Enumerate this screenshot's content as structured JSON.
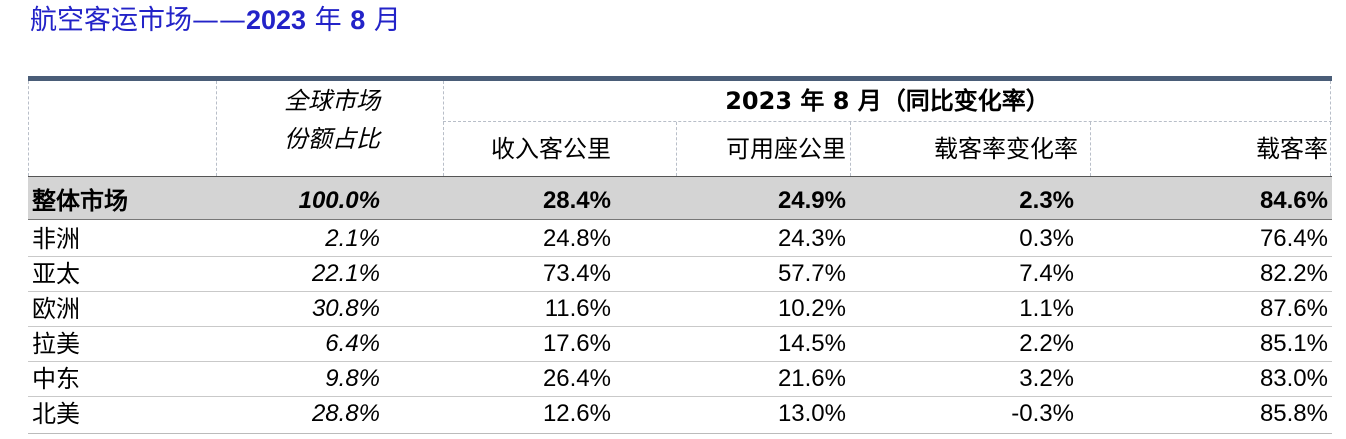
{
  "title": {
    "text": "航空客运市场",
    "dash": "——",
    "bold_year": "2023",
    "year_unit": "年",
    "bold_month": "8",
    "month_unit": "月"
  },
  "header": {
    "share_line1": "全球市场",
    "share_line2": "份额占比",
    "group_title": "2023 年 8 月（同比变化率）",
    "columns": [
      "收入客公里",
      "可用座公里",
      "载客率变化率",
      "载客率"
    ]
  },
  "rows": [
    {
      "region": "整体市场",
      "share": "100.0%",
      "rpk": "28.4%",
      "ask": "24.9%",
      "plf_change": "2.3%",
      "plf": "84.6%"
    },
    {
      "region": "非洲",
      "share": "2.1%",
      "rpk": "24.8%",
      "ask": "24.3%",
      "plf_change": "0.3%",
      "plf": "76.4%"
    },
    {
      "region": "亚太",
      "share": "22.1%",
      "rpk": "73.4%",
      "ask": "57.7%",
      "plf_change": "7.4%",
      "plf": "82.2%"
    },
    {
      "region": "欧洲",
      "share": "30.8%",
      "rpk": "11.6%",
      "ask": "10.2%",
      "plf_change": "1.1%",
      "plf": "87.6%"
    },
    {
      "region": "拉美",
      "share": "6.4%",
      "rpk": "17.6%",
      "ask": "14.5%",
      "plf_change": "2.2%",
      "plf": "85.1%"
    },
    {
      "region": "中东",
      "share": "9.8%",
      "rpk": "26.4%",
      "ask": "21.6%",
      "plf_change": "3.2%",
      "plf": "83.0%"
    },
    {
      "region": "北美",
      "share": "28.8%",
      "rpk": "12.6%",
      "ask": "13.0%",
      "plf_change": "-0.3%",
      "plf": "85.8%"
    }
  ]
}
